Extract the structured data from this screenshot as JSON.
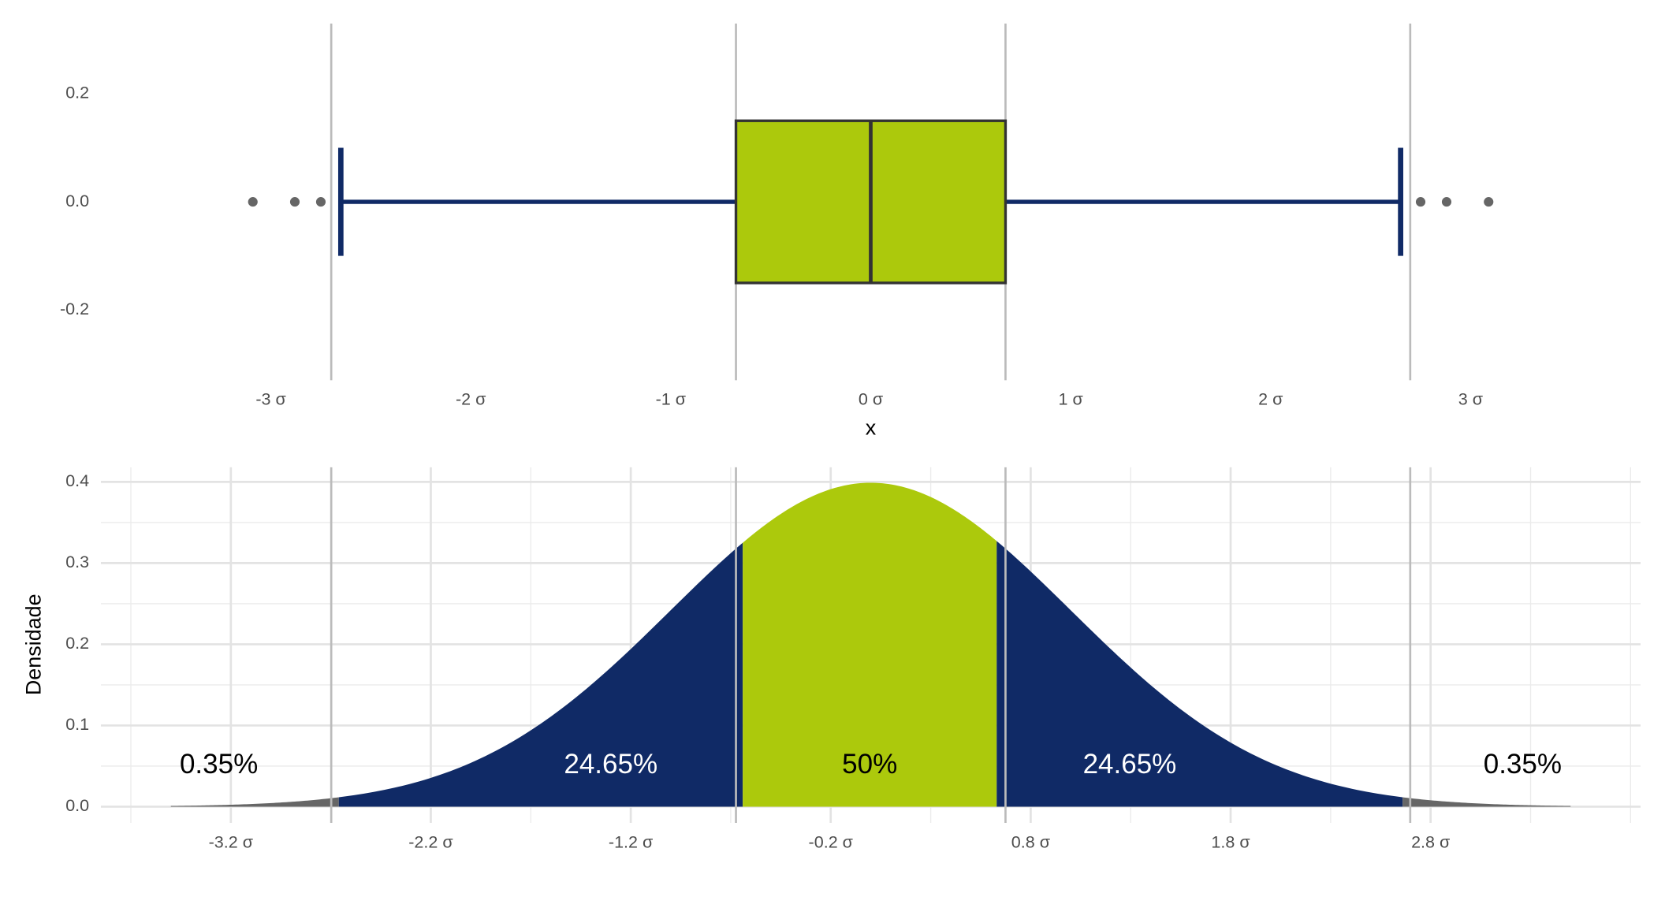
{
  "chart_data": [
    {
      "type": "boxplot",
      "x_label": "x",
      "xlim": [
        -3.85,
        3.85
      ],
      "ylim": [
        -0.33,
        0.33
      ],
      "xticks": [
        {
          "value": -3,
          "label": "-3 σ"
        },
        {
          "value": -2,
          "label": "-2 σ"
        },
        {
          "value": -1,
          "label": "-1 σ"
        },
        {
          "value": 0,
          "label": "0 σ"
        },
        {
          "value": 1,
          "label": "1 σ"
        },
        {
          "value": 2,
          "label": "2 σ"
        },
        {
          "value": 3,
          "label": "3 σ"
        }
      ],
      "yticks": [
        -0.2,
        {
          "value": 0,
          "label": "0.0"
        },
        0.2
      ],
      "vlines": [
        -2.698,
        -0.674,
        0.674,
        2.698
      ],
      "q1": -0.674,
      "median": 0,
      "q3": 0.674,
      "whisker_low": -2.65,
      "whisker_high": 2.65,
      "outliers": [
        -3.09,
        -2.88,
        -2.75,
        2.75,
        2.88,
        3.09
      ],
      "box_color": "#acc90c",
      "whisker_color": "#102a66",
      "outlier_color": "#666666"
    },
    {
      "type": "area",
      "y_label": "Densidade",
      "xlim": [
        -3.85,
        3.85
      ],
      "ylim": [
        -0.02,
        0.418
      ],
      "xticks": [
        {
          "value": -3.2,
          "label": "-3.2 σ"
        },
        {
          "value": -2.2,
          "label": "-2.2 σ"
        },
        {
          "value": -1.2,
          "label": "-1.2 σ"
        },
        {
          "value": -0.2,
          "label": "-0.2 σ"
        },
        {
          "value": 0.8,
          "label": "0.8 σ"
        },
        {
          "value": 1.8,
          "label": "1.8 σ"
        },
        {
          "value": 2.8,
          "label": "2.8 σ"
        }
      ],
      "yticks": [
        {
          "value": 0,
          "label": "0.0"
        },
        0.1,
        0.2,
        0.3,
        0.4
      ],
      "grid": true,
      "vlines": [
        -2.698,
        -0.674,
        0.674,
        2.698
      ],
      "bands": [
        {
          "from": -3.5,
          "to": -2.66,
          "color": "#666666",
          "value": 0.35,
          "value_label": "0.35%"
        },
        {
          "from": -2.66,
          "to": -0.64,
          "color": "#102a66",
          "value": 24.65,
          "value_label": "24.65%"
        },
        {
          "from": -0.64,
          "to": 0.63,
          "color": "#acc90c",
          "value": 50,
          "value_label": "50%"
        },
        {
          "from": 0.63,
          "to": 2.66,
          "color": "#102a66",
          "value": 24.65,
          "value_label": "24.65%"
        },
        {
          "from": 2.66,
          "to": 3.5,
          "color": "#666666",
          "value": 0.35,
          "value_label": "0.35%"
        }
      ]
    }
  ]
}
